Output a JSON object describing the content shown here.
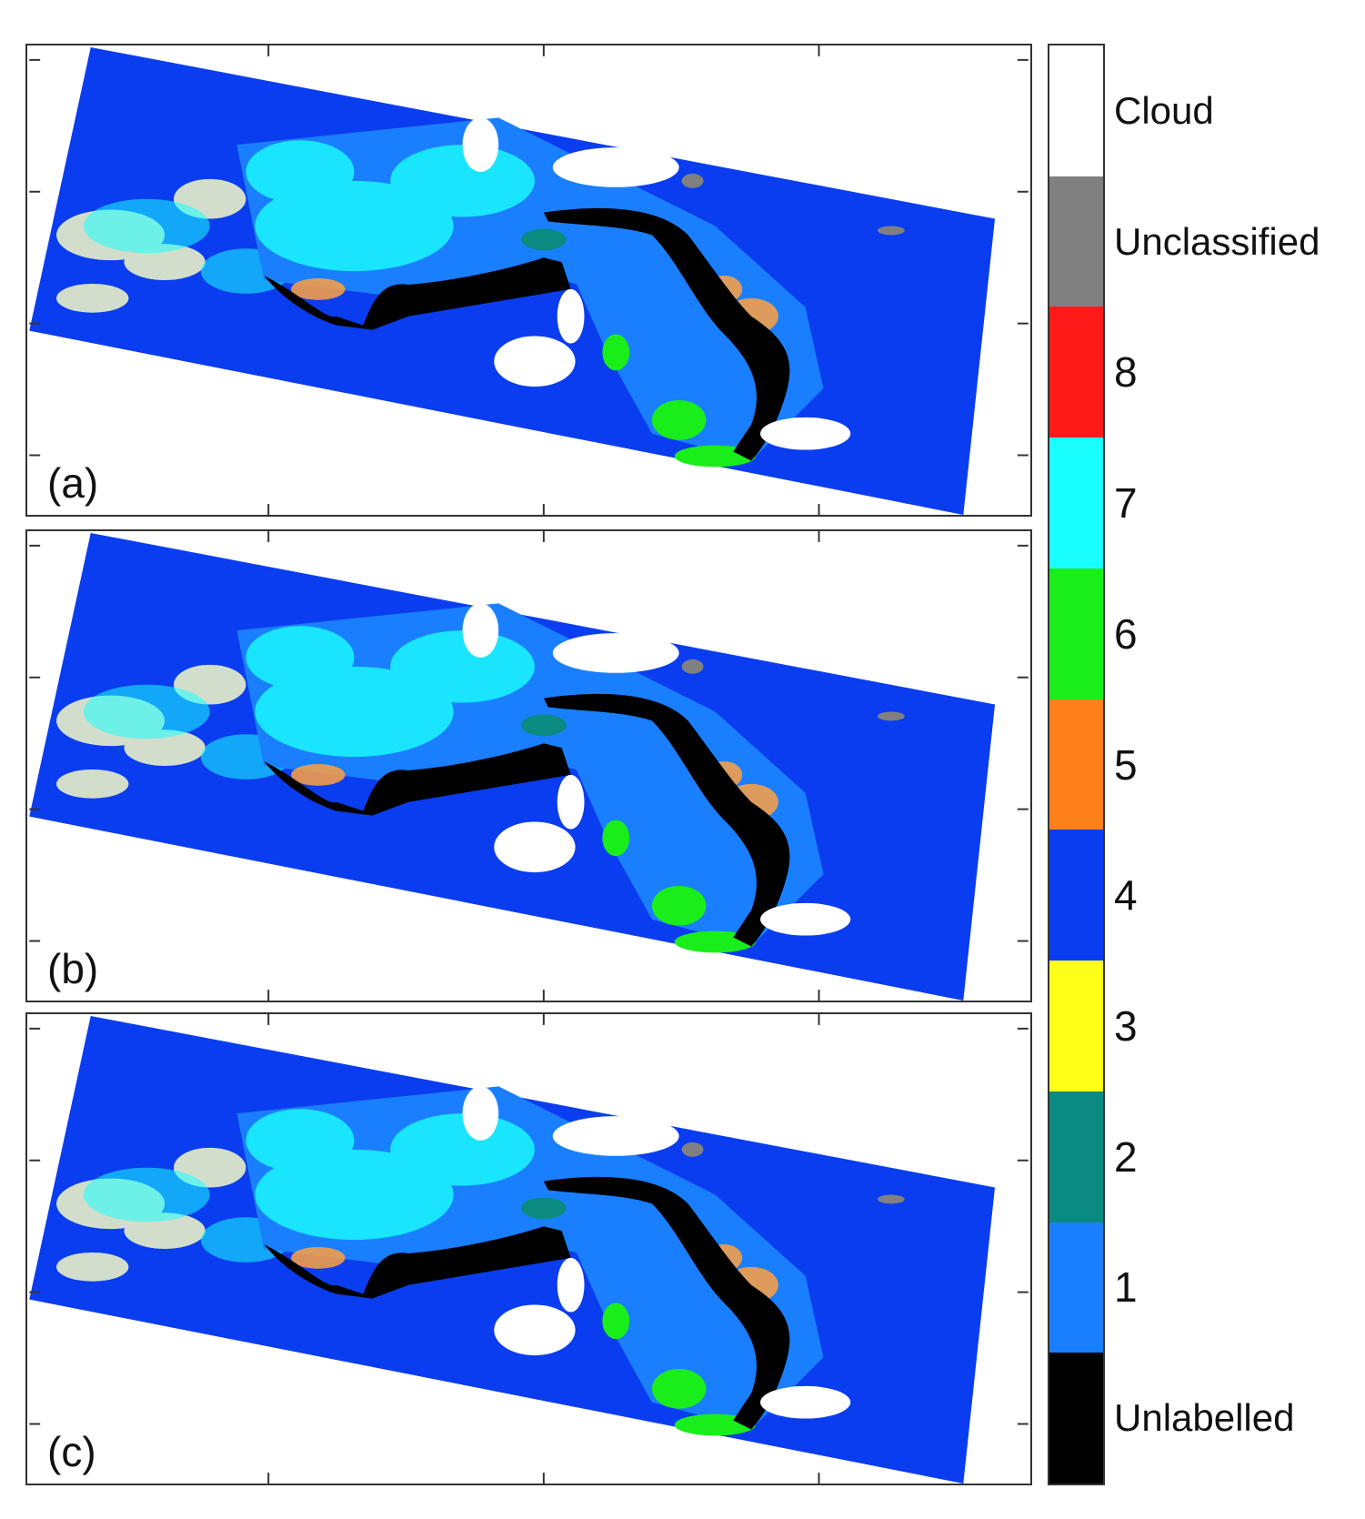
{
  "panels": [
    {
      "label": "(a)"
    },
    {
      "label": "(b)"
    },
    {
      "label": "(c)"
    }
  ],
  "legend": {
    "classes": [
      {
        "label": "Cloud",
        "color": "#ffffff"
      },
      {
        "label": "Unclassified",
        "color": "#808080"
      },
      {
        "label": "8",
        "color": "#ff1a1a"
      },
      {
        "label": "7",
        "color": "#1affff"
      },
      {
        "label": "6",
        "color": "#1aee1a"
      },
      {
        "label": "5",
        "color": "#ff7f1a"
      },
      {
        "label": "4",
        "color": "#0a3df0"
      },
      {
        "label": "3",
        "color": "#ffff1a"
      },
      {
        "label": "2",
        "color": "#0a8a80"
      },
      {
        "label": "1",
        "color": "#1a7fff"
      },
      {
        "label": "Unlabelled",
        "color": "#000000"
      }
    ]
  }
}
